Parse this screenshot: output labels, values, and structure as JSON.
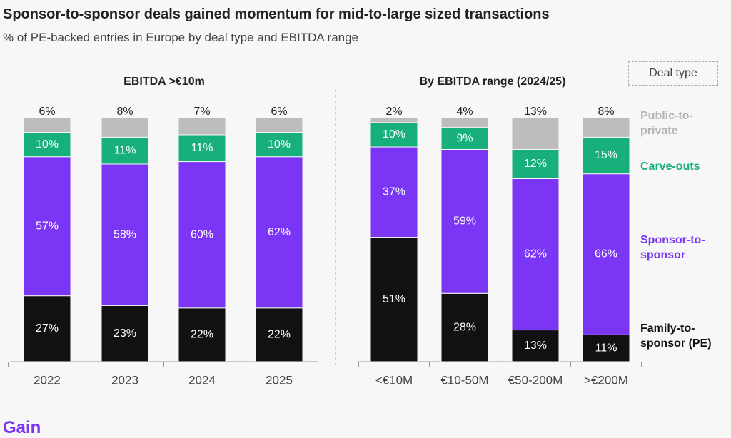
{
  "title": "Sponsor-to-sponsor deals gained momentum for mid-to-large sized transactions",
  "subtitle": "% of PE-backed entries in Europe by deal type and EBITDA range",
  "legend_title": "Deal type",
  "brand": "Gain",
  "chart_data": [
    {
      "type": "stacked-bar",
      "title": "EBITDA >€10m",
      "categories": [
        "2022",
        "2023",
        "2024",
        "2025"
      ],
      "series": [
        {
          "name": "Family-to-sponsor (PE)",
          "color": "#111111",
          "values": [
            27,
            23,
            22,
            22
          ],
          "value_labels": [
            "27%",
            "23%",
            "22%",
            "22%"
          ]
        },
        {
          "name": "Sponsor-to-sponsor",
          "color": "#7b35f5",
          "values": [
            57,
            58,
            60,
            62
          ],
          "value_labels": [
            "57%",
            "58%",
            "60%",
            "62%"
          ]
        },
        {
          "name": "Carve-outs",
          "color": "#18b07a",
          "values": [
            10,
            11,
            11,
            10
          ],
          "value_labels": [
            "10%",
            "11%",
            "11%",
            "10%"
          ]
        },
        {
          "name": "Public-to-private",
          "color": "#bdbdbd",
          "values": [
            6,
            8,
            7,
            6
          ],
          "value_labels": [
            "6%",
            "8%",
            "7%",
            "6%"
          ]
        }
      ]
    },
    {
      "type": "stacked-bar",
      "title": "By EBITDA range (2024/25)",
      "categories": [
        "<€10M",
        "€10-50M",
        "€50-200M",
        ">€200M"
      ],
      "series": [
        {
          "name": "Family-to-sponsor (PE)",
          "color": "#111111",
          "values": [
            51,
            28,
            13,
            11
          ],
          "value_labels": [
            "51%",
            "28%",
            "13%",
            "11%"
          ]
        },
        {
          "name": "Sponsor-to-sponsor",
          "color": "#7b35f5",
          "values": [
            37,
            59,
            62,
            66
          ],
          "value_labels": [
            "37%",
            "59%",
            "62%",
            "66%"
          ]
        },
        {
          "name": "Carve-outs",
          "color": "#18b07a",
          "values": [
            10,
            9,
            12,
            15
          ],
          "value_labels": [
            "10%",
            "9%",
            "12%",
            "15%"
          ]
        },
        {
          "name": "Public-to-private",
          "color": "#bdbdbd",
          "values": [
            2,
            4,
            13,
            8
          ],
          "value_labels": [
            "2%",
            "4%",
            "13%",
            "8%"
          ]
        }
      ]
    }
  ]
}
